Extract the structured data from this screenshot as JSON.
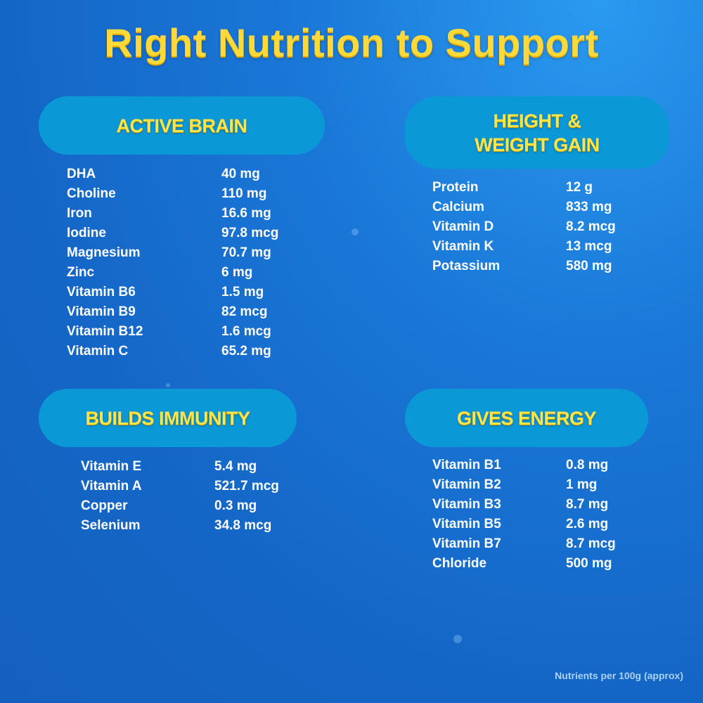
{
  "title": "Right Nutrition to Support",
  "sections": [
    {
      "heading": "ACTIVE BRAIN",
      "items": [
        {
          "name": "DHA",
          "value": "40 mg"
        },
        {
          "name": "Choline",
          "value": "110 mg"
        },
        {
          "name": "Iron",
          "value": "16.6 mg"
        },
        {
          "name": "Iodine",
          "value": "97.8 mcg"
        },
        {
          "name": "Magnesium",
          "value": "70.7 mg"
        },
        {
          "name": "Zinc",
          "value": "6 mg"
        },
        {
          "name": "Vitamin B6",
          "value": "1.5 mg"
        },
        {
          "name": "Vitamin B9",
          "value": "82 mcg"
        },
        {
          "name": "Vitamin B12",
          "value": "1.6 mcg"
        },
        {
          "name": "Vitamin C",
          "value": "65.2 mg"
        }
      ]
    },
    {
      "heading": "HEIGHT &\nWEIGHT GAIN",
      "items": [
        {
          "name": "Protein",
          "value": "12 g"
        },
        {
          "name": "Calcium",
          "value": "833 mg"
        },
        {
          "name": "Vitamin D",
          "value": "8.2 mcg"
        },
        {
          "name": "Vitamin K",
          "value": "13 mcg"
        },
        {
          "name": "Potassium",
          "value": "580 mg"
        }
      ]
    },
    {
      "heading": "BUILDS IMMUNITY",
      "items": [
        {
          "name": "Vitamin E",
          "value": "5.4 mg"
        },
        {
          "name": "Vitamin A",
          "value": "521.7 mcg"
        },
        {
          "name": "Copper",
          "value": "0.3 mg"
        },
        {
          "name": "Selenium",
          "value": "34.8 mcg"
        }
      ]
    },
    {
      "heading": "GIVES ENERGY",
      "items": [
        {
          "name": "Vitamin B1",
          "value": "0.8 mg"
        },
        {
          "name": "Vitamin B2",
          "value": "1 mg"
        },
        {
          "name": "Vitamin B3",
          "value": "8.7 mg"
        },
        {
          "name": "Vitamin B5",
          "value": "2.6 mg"
        },
        {
          "name": "Vitamin B7",
          "value": "8.7 mcg"
        },
        {
          "name": "Chloride",
          "value": "500 mg"
        }
      ]
    }
  ],
  "footnote": "Nutrients per 100g (approx)",
  "colors": {
    "title": "#ffd83a",
    "pill": "#0b98d6",
    "background": "#1466c6",
    "text": "#ffffff"
  }
}
